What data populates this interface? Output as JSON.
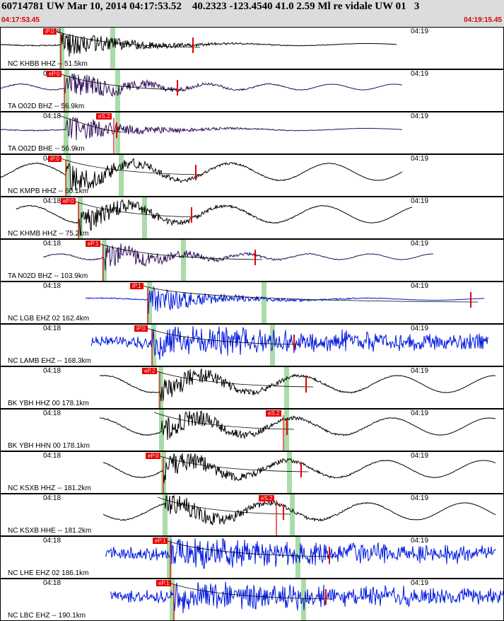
{
  "header": {
    "title": "60714781 UW Mar 10, 2014 04:17:53.52    40.2323 -123.4540 41.0 2.59 Ml re vidale UW 01   3",
    "time_start": "04:17:53.45",
    "time_end": "04:19:15.45"
  },
  "colors": {
    "trace_black": "#000000",
    "trace_purple": "#30105a",
    "trace_blue": "#0018e0",
    "pick_box": "#e60000",
    "pick_band": "#a8dca8",
    "header_bg": "#dcdcdc"
  },
  "traces": [
    {
      "station": "NC KHBB HHZ -- 51.5km",
      "time_labels": [
        "04:18",
        "04:19"
      ],
      "pick_label": "iP.0",
      "color": "black"
    },
    {
      "station": "TA O02D BHZ -- 56.9km",
      "time_labels": [
        "04:18",
        "04:19"
      ],
      "pick_label": "eP.0",
      "color": "purple"
    },
    {
      "station": "TA O02D BHE -- 56.9km",
      "time_labels": [
        "04:18",
        "04:19"
      ],
      "pick_label": "eS.2",
      "color": "purple"
    },
    {
      "station": "NC KMPB HHZ -- 60.1km",
      "time_labels": [
        "04:18",
        "04:19"
      ],
      "pick_label": "iP.0",
      "color": "black"
    },
    {
      "station": "NC KHMB HHZ -- 75.2km",
      "time_labels": [
        "04:18",
        "04:19"
      ],
      "pick_label": "eP.0",
      "color": "black"
    },
    {
      "station": "TA N02D BHZ -- 103.9km",
      "time_labels": [
        "04:18",
        "04:19"
      ],
      "pick_label": "eP.1",
      "color": "purple"
    },
    {
      "station": "NC LGB EHZ 02 162.4km",
      "time_labels": [
        "04:18",
        "04:19"
      ],
      "pick_label": "iP.1",
      "color": "blue"
    },
    {
      "station": "NC LAMB EHZ -- 168.3km",
      "time_labels": [
        "04:18",
        "04:19"
      ],
      "pick_label": "iP.0",
      "color": "blue"
    },
    {
      "station": "BK YBH HHZ 00 178.1km",
      "time_labels": [
        "04:18",
        "04:19"
      ],
      "pick_label": "eP.2",
      "color": "black"
    },
    {
      "station": "BK YBH HHN 00 178.1km",
      "time_labels": [
        "04:18",
        "04:19"
      ],
      "pick_label": "eS.2",
      "color": "black"
    },
    {
      "station": "NC KSXB HHZ -- 181.2km",
      "time_labels": [
        "04:18",
        "04:19"
      ],
      "pick_label": "eP.0",
      "color": "black"
    },
    {
      "station": "NC KSXB HHE -- 181.2km",
      "time_labels": [
        "04:18",
        "04:19"
      ],
      "pick_label": "eS.2",
      "color": "black"
    },
    {
      "station": "NC LHE EHZ 02 186.1km",
      "time_labels": [
        "04:18",
        "04:19"
      ],
      "pick_label": "eP.1",
      "color": "blue"
    },
    {
      "station": "NC LBC EHZ -- 190.1km",
      "time_labels": [
        "04:18",
        "04:19"
      ],
      "pick_label": "eP.1",
      "color": "blue"
    }
  ]
}
